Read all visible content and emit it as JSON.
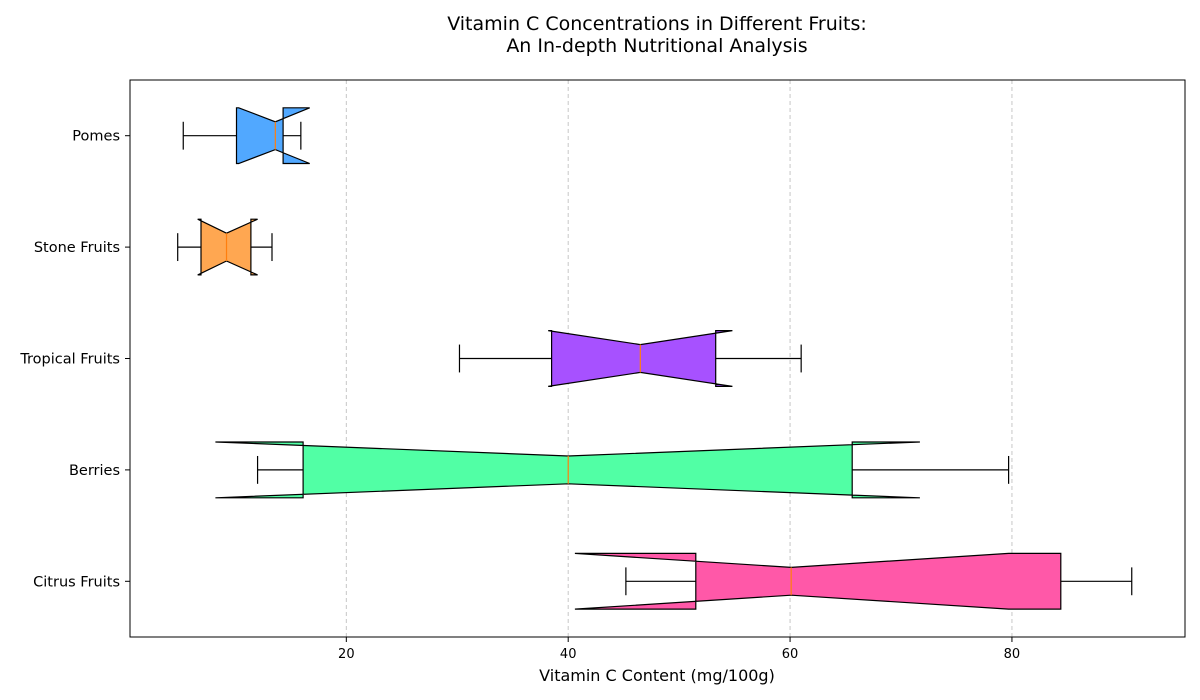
{
  "chart_data": {
    "type": "boxplot",
    "orientation": "horizontal",
    "notched": true,
    "title_line1": "Vitamin C Concentrations in Different Fruits:",
    "title_line2": "An In-depth Nutritional Analysis",
    "xlabel": "Vitamin C Content (mg/100g)",
    "ylabel": "",
    "xlim": [
      0.5,
      95.6
    ],
    "xticks": [
      20,
      40,
      60,
      80
    ],
    "grid": "x-dashed",
    "median_color": "#ff7f0e",
    "categories": [
      {
        "name": "Citrus Fruits",
        "color": "#ff58a8",
        "whisker_low": 45.2,
        "q1": 51.5,
        "median": 60.1,
        "q3": 84.4,
        "whisker_high": 90.8,
        "notch_low": 40.6,
        "notch_high": 79.7
      },
      {
        "name": "Berries",
        "color": "#51ffa5",
        "whisker_low": 12.0,
        "q1": 16.1,
        "median": 40.0,
        "q3": 65.6,
        "whisker_high": 79.7,
        "notch_low": 8.2,
        "notch_high": 71.7
      },
      {
        "name": "Tropical Fruits",
        "color": "#a751ff",
        "whisker_low": 30.2,
        "q1": 38.5,
        "median": 46.5,
        "q3": 53.3,
        "whisker_high": 61.0,
        "notch_low": 38.2,
        "notch_high": 54.8
      },
      {
        "name": "Stone Fruits",
        "color": "#ffa751",
        "whisker_low": 4.8,
        "q1": 6.9,
        "median": 9.2,
        "q3": 11.4,
        "whisker_high": 13.3,
        "notch_low": 6.6,
        "notch_high": 12.0
      },
      {
        "name": "Pomes",
        "color": "#51a8ff",
        "whisker_low": 5.3,
        "q1": 10.1,
        "median": 13.6,
        "q3": 14.3,
        "whisker_high": 15.9,
        "notch_low": 10.3,
        "notch_high": 16.7
      }
    ]
  }
}
